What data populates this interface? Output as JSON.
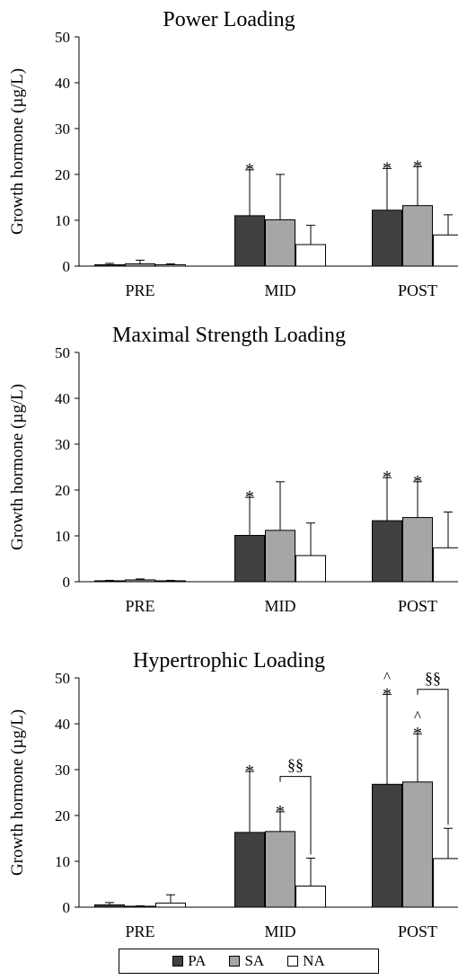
{
  "chart_data": [
    {
      "type": "bar",
      "title": "Power Loading",
      "ylabel": "Growth hormone (µg/L)",
      "ylim": [
        0,
        50
      ],
      "yticks": [
        0,
        10,
        20,
        30,
        40,
        50
      ],
      "categories": [
        "PRE",
        "MID",
        "POST"
      ],
      "series": [
        {
          "name": "PA",
          "color": "#404040",
          "values": [
            0.3,
            11.0,
            12.2
          ],
          "errors": [
            0.3,
            10.0,
            9.1
          ]
        },
        {
          "name": "SA",
          "color": "#a6a6a6",
          "values": [
            0.5,
            10.1,
            13.2
          ],
          "errors": [
            0.8,
            9.9,
            8.5
          ]
        },
        {
          "name": "NA",
          "color": "#ffffff",
          "values": [
            0.3,
            4.7,
            6.8
          ],
          "errors": [
            0.2,
            4.2,
            4.4
          ]
        }
      ],
      "annotations": [
        {
          "category": 1,
          "series": 0,
          "text": "*"
        },
        {
          "category": 2,
          "series": 0,
          "text": "*"
        },
        {
          "category": 2,
          "series": 1,
          "text": "*"
        }
      ],
      "brackets": []
    },
    {
      "type": "bar",
      "title": "Maximal Strength Loading",
      "ylabel": "Growth hormone (µg/L)",
      "ylim": [
        0,
        50
      ],
      "yticks": [
        0,
        10,
        20,
        30,
        40,
        50
      ],
      "categories": [
        "PRE",
        "MID",
        "POST"
      ],
      "series": [
        {
          "name": "PA",
          "color": "#404040",
          "values": [
            0.2,
            10.1,
            13.3
          ],
          "errors": [
            0.1,
            8.3,
            9.4
          ]
        },
        {
          "name": "SA",
          "color": "#a6a6a6",
          "values": [
            0.4,
            11.2,
            14.0
          ],
          "errors": [
            0.2,
            10.6,
            7.8
          ]
        },
        {
          "name": "NA",
          "color": "#ffffff",
          "values": [
            0.2,
            5.7,
            7.4
          ],
          "errors": [
            0.1,
            7.1,
            7.8
          ]
        }
      ],
      "annotations": [
        {
          "category": 1,
          "series": 0,
          "text": "*"
        },
        {
          "category": 2,
          "series": 0,
          "text": "*"
        },
        {
          "category": 2,
          "series": 1,
          "text": "*"
        }
      ],
      "brackets": []
    },
    {
      "type": "bar",
      "title": "Hypertrophic Loading",
      "ylabel": "Growth hormone (µg/L)",
      "ylim": [
        0,
        50
      ],
      "yticks": [
        0,
        10,
        20,
        30,
        40,
        50
      ],
      "categories": [
        "PRE",
        "MID",
        "POST"
      ],
      "series": [
        {
          "name": "PA",
          "color": "#404040",
          "values": [
            0.5,
            16.3,
            26.8
          ],
          "errors": [
            0.5,
            13.3,
            19.6
          ]
        },
        {
          "name": "SA",
          "color": "#a6a6a6",
          "values": [
            0.2,
            16.5,
            27.3
          ],
          "errors": [
            0.1,
            4.3,
            10.5
          ]
        },
        {
          "name": "NA",
          "color": "#ffffff",
          "values": [
            0.9,
            4.6,
            10.6
          ],
          "errors": [
            1.8,
            6.1,
            6.6
          ]
        }
      ],
      "annotations": [
        {
          "category": 1,
          "series": 0,
          "text": "*"
        },
        {
          "category": 1,
          "series": 1,
          "text": "*"
        },
        {
          "category": 2,
          "series": 0,
          "text": "*"
        },
        {
          "category": 2,
          "series": 0,
          "text": "^"
        },
        {
          "category": 2,
          "series": 1,
          "text": "*"
        },
        {
          "category": 2,
          "series": 1,
          "text": "^"
        }
      ],
      "brackets": [
        {
          "category": 1,
          "from_series": 1,
          "to_series": 2,
          "y": 28.5,
          "text": "§§"
        },
        {
          "category": 2,
          "from_series": 1,
          "to_series": 2,
          "y": 47.5,
          "text": "§§"
        }
      ]
    }
  ],
  "legend": [
    {
      "name": "PA",
      "color": "#404040"
    },
    {
      "name": "SA",
      "color": "#a6a6a6"
    },
    {
      "name": "NA",
      "color": "#ffffff"
    }
  ]
}
